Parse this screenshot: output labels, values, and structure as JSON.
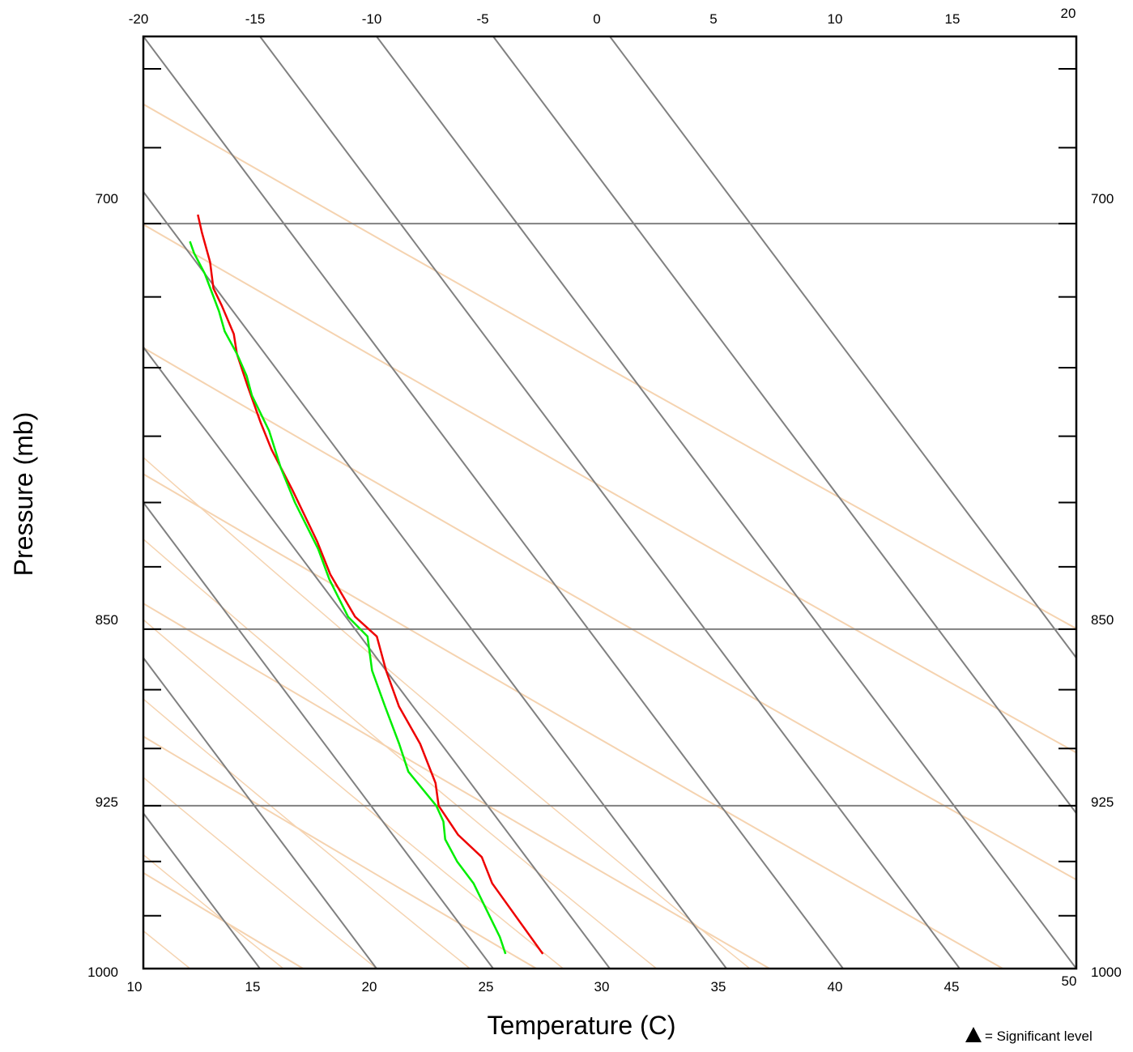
{
  "chart_data": {
    "type": "line",
    "subtype": "skew-t log-p diagram",
    "xlabel": "Temperature (C)",
    "ylabel": "Pressure (mb)",
    "bottom_ticks": [
      "10",
      "15",
      "20",
      "25",
      "30",
      "35",
      "40",
      "45",
      "50"
    ],
    "top_ticks": [
      "-20",
      "-15",
      "-10",
      "-5",
      "0",
      "5",
      "10",
      "15",
      "20"
    ],
    "pressure_labels": [
      "700",
      "850",
      "925",
      "1000"
    ],
    "pressure_range_mb": [
      1000,
      640
    ],
    "bottom_temperature_range_c": [
      10,
      50
    ],
    "top_temperature_range_c": [
      -20,
      20
    ],
    "legend": {
      "symbol": "triangle",
      "text": "= Significant level"
    },
    "colors": {
      "temperature": "#ee0000",
      "dewpoint": "#00ee00",
      "isotherm_grid": "#808080",
      "adiabat_grid": "#f5d3b0",
      "isobar_grid": "#808080"
    },
    "series": [
      {
        "color": "temperature",
        "points": [
          {
            "p": 993,
            "t": 27.6
          },
          {
            "p": 960,
            "t": 27.7
          },
          {
            "p": 948,
            "t": 28.1
          },
          {
            "p": 938,
            "t": 27.8
          },
          {
            "p": 925,
            "t": 27.9
          },
          {
            "p": 915,
            "t": 28.5
          },
          {
            "p": 898,
            "t": 29.1
          },
          {
            "p": 882,
            "t": 29.4
          },
          {
            "p": 867,
            "t": 30.0
          },
          {
            "p": 853,
            "t": 30.7
          },
          {
            "p": 845,
            "t": 30.4
          },
          {
            "p": 828,
            "t": 30.7
          },
          {
            "p": 815,
            "t": 31.2
          },
          {
            "p": 795,
            "t": 31.8
          },
          {
            "p": 780,
            "t": 32.2
          },
          {
            "p": 770,
            "t": 32.6
          },
          {
            "p": 757,
            "t": 33.2
          },
          {
            "p": 745,
            "t": 33.8
          },
          {
            "p": 738,
            "t": 34.3
          },
          {
            "p": 728,
            "t": 34.7
          },
          {
            "p": 722,
            "t": 34.9
          },
          {
            "p": 713,
            "t": 35.6
          },
          {
            "p": 703,
            "t": 36.2
          },
          {
            "p": 697,
            "t": 36.6
          }
        ]
      },
      {
        "color": "dewpoint",
        "points": [
          {
            "p": 993,
            "t": 26.0
          },
          {
            "p": 985,
            "t": 26.3
          },
          {
            "p": 960,
            "t": 26.9
          },
          {
            "p": 950,
            "t": 26.9
          },
          {
            "p": 940,
            "t": 27.1
          },
          {
            "p": 932,
            "t": 27.6
          },
          {
            "p": 925,
            "t": 27.8
          },
          {
            "p": 910,
            "t": 27.7
          },
          {
            "p": 898,
            "t": 28.2
          },
          {
            "p": 882,
            "t": 28.8
          },
          {
            "p": 867,
            "t": 29.4
          },
          {
            "p": 853,
            "t": 30.3
          },
          {
            "p": 845,
            "t": 30.1
          },
          {
            "p": 830,
            "t": 30.5
          },
          {
            "p": 818,
            "t": 31.0
          },
          {
            "p": 800,
            "t": 31.5
          },
          {
            "p": 787,
            "t": 32.0
          },
          {
            "p": 773,
            "t": 32.7
          },
          {
            "p": 760,
            "t": 33.1
          },
          {
            "p": 753,
            "t": 33.5
          },
          {
            "p": 745,
            "t": 33.8
          },
          {
            "p": 737,
            "t": 34.0
          },
          {
            "p": 730,
            "t": 34.4
          },
          {
            "p": 717,
            "t": 35.0
          },
          {
            "p": 710,
            "t": 35.2
          },
          {
            "p": 706,
            "t": 35.4
          }
        ]
      }
    ]
  }
}
